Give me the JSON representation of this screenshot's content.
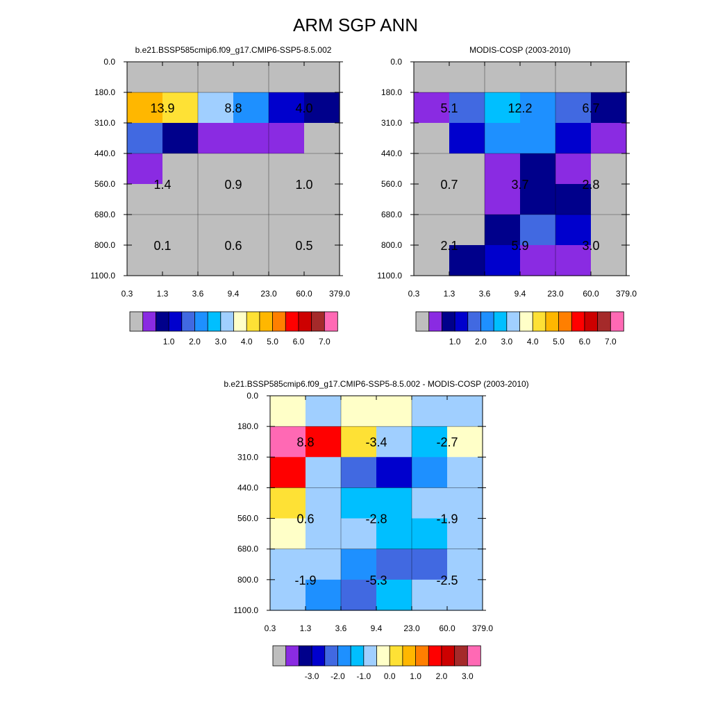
{
  "page_title": "ARM SGP ANN",
  "palette": {
    "missing": "#bebebe",
    "colors": [
      "#bebebe",
      "#8a2be2",
      "#00008b",
      "#0000cd",
      "#4169e1",
      "#1e90ff",
      "#00bfff",
      "#a0cfff",
      "#ffffc8",
      "#fee135",
      "#ffb700",
      "#ff7f00",
      "#ff0000",
      "#cd0000",
      "#a52a2a",
      "#ff69b4"
    ]
  },
  "x_tick_labels": [
    "0.3",
    "1.3",
    "3.6",
    "9.4",
    "23.0",
    "60.0",
    "379.0"
  ],
  "y_tick_labels": [
    "0.0",
    "180.0",
    "310.0",
    "440.0",
    "560.0",
    "680.0",
    "800.0",
    "1100.0"
  ],
  "chart_data": [
    {
      "type": "heatmap",
      "title": "b.e21.BSSP585cmip6.f09_g17.CMIP6-SSP5-8.5.002",
      "grid": [
        [
          0,
          0,
          0,
          0,
          0,
          0
        ],
        [
          10,
          9,
          7,
          5,
          3,
          2
        ],
        [
          4,
          2,
          1,
          1,
          1,
          0
        ],
        [
          1,
          0,
          0,
          0,
          0,
          0
        ],
        [
          0,
          0,
          0,
          0,
          0,
          0
        ],
        [
          0,
          0,
          0,
          0,
          0,
          0
        ],
        [
          0,
          0,
          0,
          0,
          0,
          0
        ]
      ],
      "annotations": [
        {
          "row": 1.5,
          "col": 1.0,
          "text": "13.9"
        },
        {
          "row": 1.5,
          "col": 3.0,
          "text": "8.8"
        },
        {
          "row": 1.5,
          "col": 5.0,
          "text": "4.0"
        },
        {
          "row": 4.0,
          "col": 1.0,
          "text": "1.4"
        },
        {
          "row": 4.0,
          "col": 3.0,
          "text": "0.9"
        },
        {
          "row": 4.0,
          "col": 5.0,
          "text": "1.0"
        },
        {
          "row": 6.0,
          "col": 1.0,
          "text": "0.1"
        },
        {
          "row": 6.0,
          "col": 3.0,
          "text": "0.6"
        },
        {
          "row": 6.0,
          "col": 5.0,
          "text": "0.5"
        }
      ],
      "colorbar_labels": [
        "1.0",
        "2.0",
        "3.0",
        "4.0",
        "5.0",
        "6.0",
        "7.0"
      ]
    },
    {
      "type": "heatmap",
      "title": "MODIS-COSP (2003-2010)",
      "grid": [
        [
          0,
          0,
          0,
          0,
          0,
          0
        ],
        [
          1,
          4,
          6,
          5,
          4,
          2
        ],
        [
          0,
          3,
          5,
          5,
          3,
          1
        ],
        [
          0,
          0,
          1,
          2,
          1,
          0
        ],
        [
          0,
          0,
          1,
          2,
          2,
          0
        ],
        [
          0,
          0,
          2,
          4,
          3,
          0
        ],
        [
          0,
          2,
          3,
          1,
          1,
          0
        ]
      ],
      "annotations": [
        {
          "row": 1.5,
          "col": 1.0,
          "text": "5.1"
        },
        {
          "row": 1.5,
          "col": 3.0,
          "text": "12.2"
        },
        {
          "row": 1.5,
          "col": 5.0,
          "text": "6.7"
        },
        {
          "row": 4.0,
          "col": 1.0,
          "text": "0.7"
        },
        {
          "row": 4.0,
          "col": 3.0,
          "text": "3.7"
        },
        {
          "row": 4.0,
          "col": 5.0,
          "text": "2.8"
        },
        {
          "row": 6.0,
          "col": 1.0,
          "text": "2.1"
        },
        {
          "row": 6.0,
          "col": 3.0,
          "text": "5.9"
        },
        {
          "row": 6.0,
          "col": 5.0,
          "text": "3.0"
        }
      ],
      "colorbar_labels": [
        "1.0",
        "2.0",
        "3.0",
        "4.0",
        "5.0",
        "6.0",
        "7.0"
      ]
    },
    {
      "type": "heatmap",
      "title": "b.e21.BSSP585cmip6.f09_g17.CMIP6-SSP5-8.5.002 - MODIS-COSP (2003-2010)",
      "grid": [
        [
          8,
          7,
          8,
          8,
          7,
          7
        ],
        [
          15,
          12,
          9,
          7,
          6,
          8
        ],
        [
          12,
          7,
          4,
          3,
          5,
          7
        ],
        [
          9,
          7,
          6,
          6,
          7,
          7
        ],
        [
          8,
          7,
          7,
          6,
          6,
          7
        ],
        [
          7,
          7,
          5,
          4,
          4,
          7
        ],
        [
          7,
          5,
          4,
          6,
          7,
          7
        ]
      ],
      "annotations": [
        {
          "row": 1.5,
          "col": 1.0,
          "text": "8.8"
        },
        {
          "row": 1.5,
          "col": 3.0,
          "text": "-3.4"
        },
        {
          "row": 1.5,
          "col": 5.0,
          "text": "-2.7"
        },
        {
          "row": 4.0,
          "col": 1.0,
          "text": "0.6"
        },
        {
          "row": 4.0,
          "col": 3.0,
          "text": "-2.8"
        },
        {
          "row": 4.0,
          "col": 5.0,
          "text": "-1.9"
        },
        {
          "row": 6.0,
          "col": 1.0,
          "text": "-1.9"
        },
        {
          "row": 6.0,
          "col": 3.0,
          "text": "-5.3"
        },
        {
          "row": 6.0,
          "col": 5.0,
          "text": "-2.5"
        }
      ],
      "colorbar_labels": [
        "-3.0",
        "-2.0",
        "-1.0",
        "0.0",
        "1.0",
        "2.0",
        "3.0"
      ]
    }
  ]
}
